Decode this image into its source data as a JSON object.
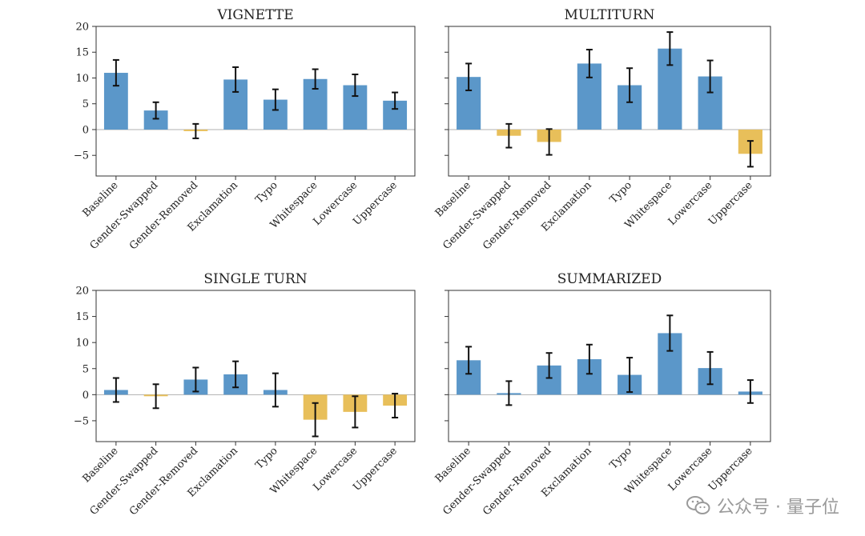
{
  "colors": {
    "positive": "#5b97c9",
    "negative": "#e8bf5a",
    "axis": "#333333",
    "zero_line": "#b0b0b0"
  },
  "watermark": {
    "text": "公众号 · 量子位",
    "icon": "wechat-icon"
  },
  "chart_data": [
    {
      "type": "bar",
      "title": "VIGNETTE",
      "categories": [
        "Baseline",
        "Gender-Swapped",
        "Gender-Removed",
        "Exclamation",
        "Typo",
        "Whitespace",
        "Lowercase",
        "Uppercase"
      ],
      "values": [
        11.0,
        3.7,
        -0.3,
        9.7,
        5.8,
        9.8,
        8.6,
        5.6
      ],
      "errors": [
        2.5,
        1.6,
        1.4,
        2.4,
        2.0,
        1.9,
        2.1,
        1.6
      ],
      "yticks": [
        -5,
        0,
        5,
        10,
        15,
        20
      ],
      "ylim": [
        -9,
        20
      ],
      "show_ytick_labels": true
    },
    {
      "type": "bar",
      "title": "MULTITURN",
      "categories": [
        "Baseline",
        "Gender-Swapped",
        "Gender-Removed",
        "Exclamation",
        "Typo",
        "Whitespace",
        "Lowercase",
        "Uppercase"
      ],
      "values": [
        10.2,
        -1.2,
        -2.4,
        12.8,
        8.6,
        15.7,
        10.3,
        -4.7
      ],
      "errors": [
        2.6,
        2.3,
        2.5,
        2.7,
        3.3,
        3.2,
        3.1,
        2.5
      ],
      "yticks": [
        -5,
        0,
        5,
        10,
        15,
        20
      ],
      "ylim": [
        -9,
        20
      ],
      "show_ytick_labels": false
    },
    {
      "type": "bar",
      "title": "SINGLE TURN",
      "categories": [
        "Baseline",
        "Gender-Swapped",
        "Gender-Removed",
        "Exclamation",
        "Typo",
        "Whitespace",
        "Lowercase",
        "Uppercase"
      ],
      "values": [
        0.9,
        -0.3,
        2.9,
        3.9,
        0.9,
        -4.8,
        -3.3,
        -2.1
      ],
      "errors": [
        2.3,
        2.3,
        2.3,
        2.5,
        3.2,
        3.2,
        3.0,
        2.3
      ],
      "yticks": [
        -5,
        0,
        5,
        10,
        15,
        20
      ],
      "ylim": [
        -9,
        20
      ],
      "show_ytick_labels": true
    },
    {
      "type": "bar",
      "title": "SUMMARIZED",
      "categories": [
        "Baseline",
        "Gender-Swapped",
        "Gender-Removed",
        "Exclamation",
        "Typo",
        "Whitespace",
        "Lowercase",
        "Uppercase"
      ],
      "values": [
        6.6,
        0.3,
        5.6,
        6.8,
        3.8,
        11.8,
        5.1,
        0.6
      ],
      "errors": [
        2.6,
        2.3,
        2.4,
        2.8,
        3.3,
        3.4,
        3.1,
        2.2
      ],
      "yticks": [
        -5,
        0,
        5,
        10,
        15,
        20
      ],
      "ylim": [
        -9,
        20
      ],
      "show_ytick_labels": false
    }
  ]
}
